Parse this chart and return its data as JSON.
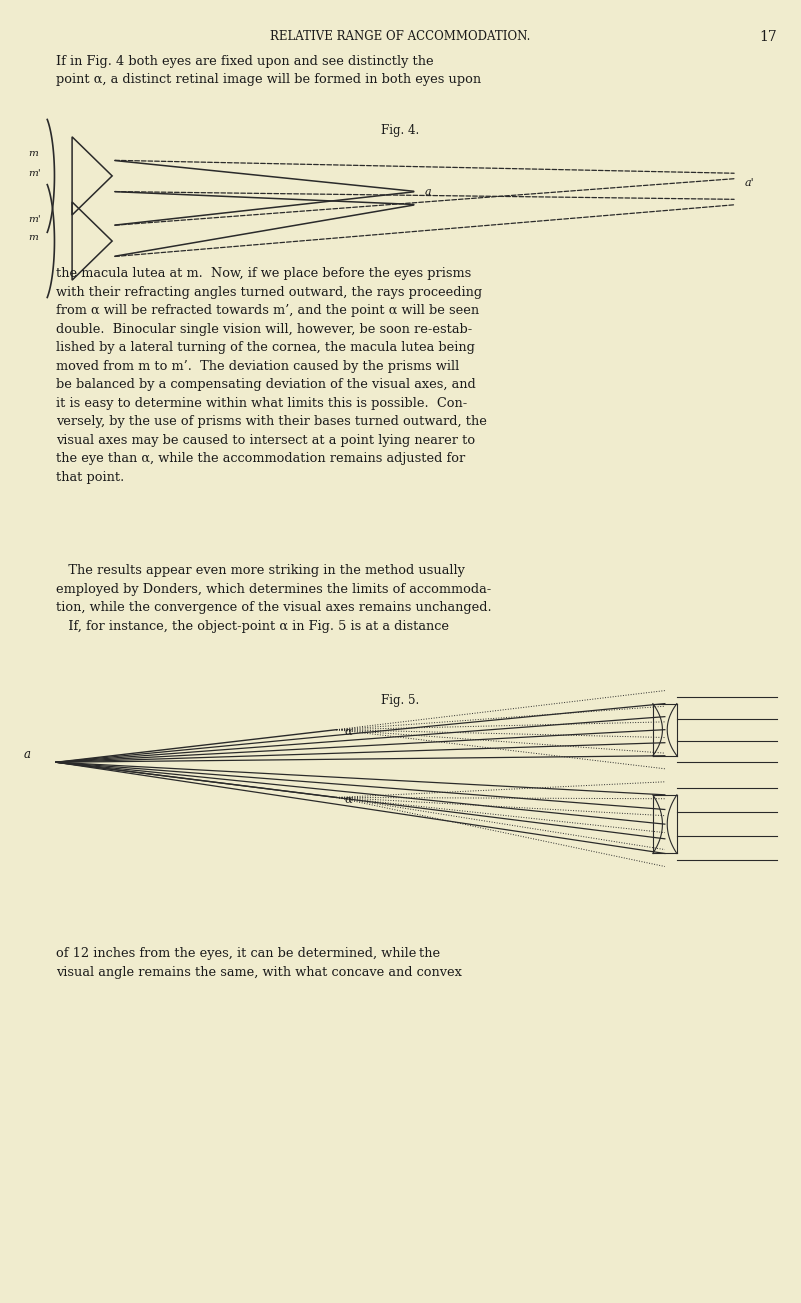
{
  "bg_color": "#f0ecce",
  "text_color": "#1a1a1a",
  "line_color": "#2a2a2a",
  "fig_width": 8.01,
  "fig_height": 13.03,
  "header_title": "RELATIVE RANGE OF ACCOMMODATION.",
  "header_page": "17",
  "body_text_1": "If in Fig. 4 both eyes are fixed upon and see distinctly the\npoint α, a distinct retinal image will be formed in both eyes upon",
  "fig4_label": "Fig. 4.",
  "body_text_2": "the macula lutea at m.  Now, if we place before the eyes prisms\nwith their refracting angles turned outward, the rays proceeding\nfrom α will be refracted towards m’, and the point α will be seen\ndouble.  Binocular single vision will, however, be soon re-estab-\nlished by a lateral turning of the cornea, the macula lutea being\nmoved from m to m’.  The deviation caused by the prisms will\nbe balanced by a compensating deviation of the visual axes, and\nit is easy to determine within what limits this is possible.  Con-\nversely, by the use of prisms with their bases turned outward, the\nvisual axes may be caused to intersect at a point lying nearer to\nthe eye than α, while the accommodation remains adjusted for\nthat point.",
  "body_text_3": "   The results appear even more striking in the method usually\nemployed by Donders, which determines the limits of accommoda-\ntion, while the convergence of the visual axes remains unchanged.\n   If, for instance, the object-point α in Fig. 5 is at a distance",
  "fig5_label": "Fig. 5.",
  "body_text_4": "of 12 inches from the eyes, it can be determined, while the\nvisual angle remains the same, with what concave and convex"
}
